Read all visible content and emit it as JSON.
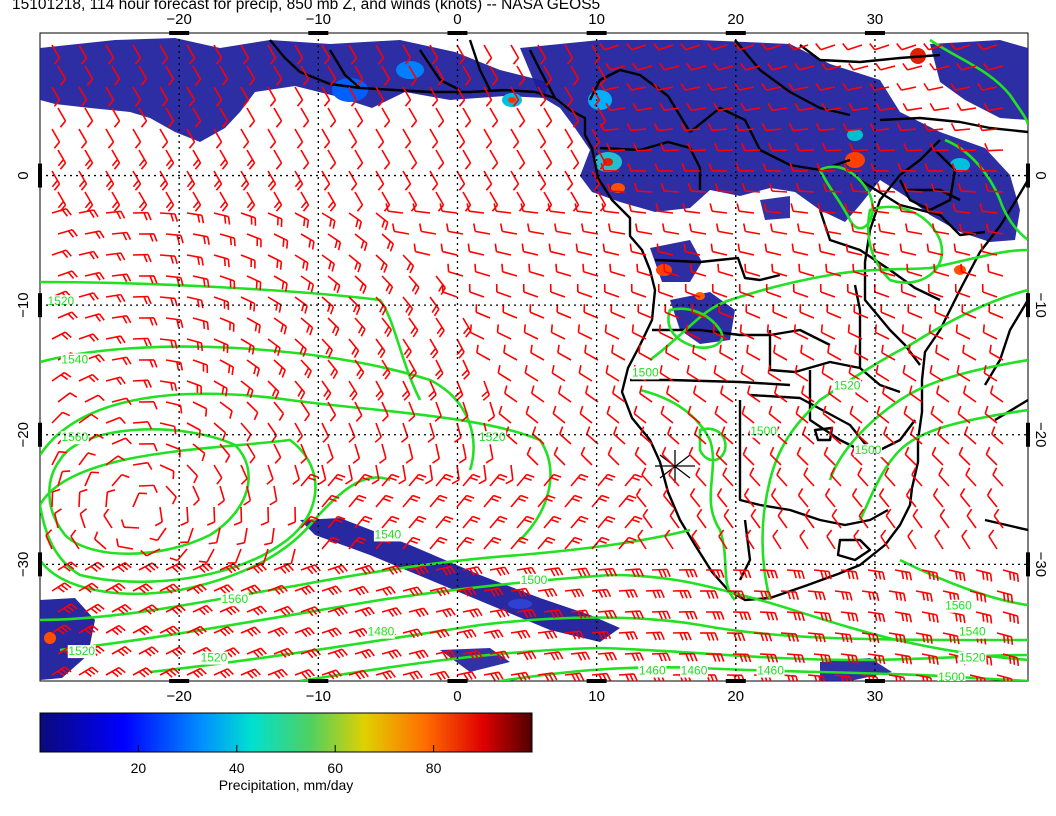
{
  "title": "15101218, 114 hour forecast for precip, 850 mb Z, and winds (knots) -- NASA GEOS5",
  "map": {
    "lon_range": [
      -30,
      41
    ],
    "lat_range": [
      -39,
      11
    ],
    "lon_ticks": [
      -20,
      -10,
      0,
      10,
      20,
      30
    ],
    "lat_ticks": [
      0,
      -10,
      -20,
      -30
    ],
    "lon_tick_labels": [
      "−20",
      "−10",
      "0",
      "10",
      "20",
      "30"
    ],
    "lat_tick_labels": [
      "0",
      "−10",
      "−20",
      "−30"
    ],
    "gridlines": "dotted",
    "colors": {
      "coastline": "#000000",
      "wind_barbs": "#ff0000",
      "geopotential_contours": "#22e022",
      "precip_low": "#1c1c9c"
    },
    "contour_labels": [
      {
        "text": "1520",
        "lon": -28.5,
        "lat": -10
      },
      {
        "text": "1540",
        "lon": -27.5,
        "lat": -14.5
      },
      {
        "text": "1560",
        "lon": -27.5,
        "lat": -20.5
      },
      {
        "text": "1520",
        "lon": 2.5,
        "lat": -20.5
      },
      {
        "text": "1540",
        "lon": -5,
        "lat": -28
      },
      {
        "text": "1560",
        "lon": -16,
        "lat": -33
      },
      {
        "text": "1500",
        "lon": 13.5,
        "lat": -15.5
      },
      {
        "text": "1500",
        "lon": 5.5,
        "lat": -31.5
      },
      {
        "text": "1480",
        "lon": -5.5,
        "lat": -35.5
      },
      {
        "text": "1520",
        "lon": -17.5,
        "lat": -37.5
      },
      {
        "text": "1560",
        "lon": 36,
        "lat": -33.5
      },
      {
        "text": "1540",
        "lon": 37,
        "lat": -35.5
      },
      {
        "text": "1520",
        "lon": 37,
        "lat": -37.5
      },
      {
        "text": "1500",
        "lon": 35.5,
        "lat": -39
      },
      {
        "text": "1460",
        "lon": 14,
        "lat": -38.5
      },
      {
        "text": "1460",
        "lon": 17,
        "lat": -38.5
      },
      {
        "text": "1460",
        "lon": 22.5,
        "lat": -38.5
      },
      {
        "text": "1520",
        "lon": 28,
        "lat": -16.5
      },
      {
        "text": "1500",
        "lon": 22,
        "lat": -20
      },
      {
        "text": "1500",
        "lon": 29.5,
        "lat": -21.5
      },
      {
        "text": "1520",
        "lon": -27,
        "lat": -37
      }
    ]
  },
  "colorbar": {
    "ticks": [
      20,
      40,
      60,
      80
    ],
    "tick_labels": [
      "20",
      "40",
      "60",
      "80"
    ],
    "range": [
      0,
      100
    ],
    "label": "Precipitation, mm/day"
  }
}
